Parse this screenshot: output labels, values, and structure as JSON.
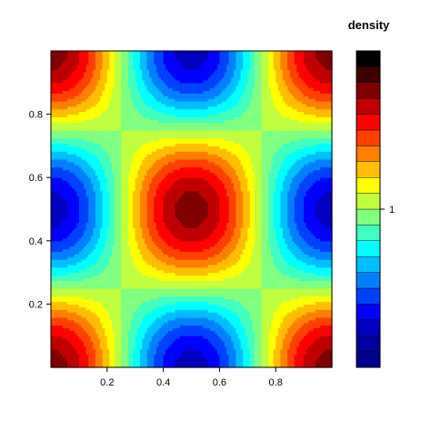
{
  "chart_data": {
    "type": "heatmap",
    "title": "",
    "xlabel": "",
    "ylabel": "",
    "xlim": [
      0,
      1
    ],
    "ylim": [
      0,
      1
    ],
    "x_ticks": [
      "0.2",
      "0.4",
      "0.6",
      "0.8"
    ],
    "y_ticks": [
      "0.2",
      "0.4",
      "0.6",
      "0.8"
    ],
    "legend_title": "density",
    "legend_ticks": [
      "1"
    ],
    "legend_placement": "right",
    "grid": false,
    "color_levels": [
      "#00008f",
      "#00009f",
      "#0000bf",
      "#0000ff",
      "#0040ff",
      "#0080ff",
      "#00bfff",
      "#00ffff",
      "#40ffbf",
      "#80ff80",
      "#bfff40",
      "#ffff00",
      "#ffbf00",
      "#ff8000",
      "#ff4000",
      "#ff0000",
      "#bf0000",
      "#800000",
      "#400000",
      "#000000"
    ],
    "level_min": 0.2,
    "level_max": 1.8,
    "level_tick_value": 1.0,
    "density": "f(x,y) = 1 + 0.6*cos(2*pi*x)*cos(2*pi*y)"
  }
}
